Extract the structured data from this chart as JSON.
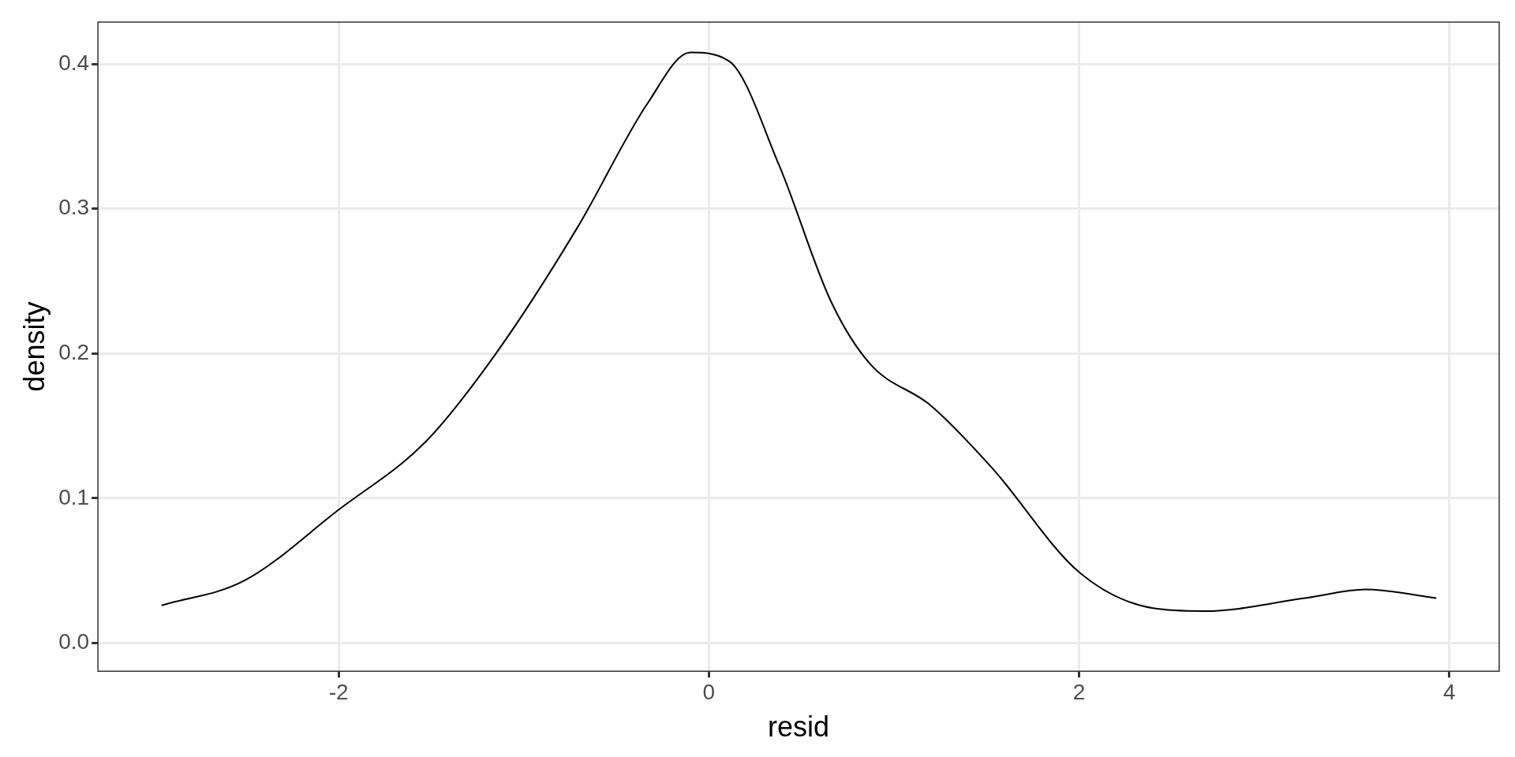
{
  "chart_data": {
    "type": "line",
    "xlabel": "resid",
    "ylabel": "density",
    "xlim": [
      -3.3,
      4.27
    ],
    "ylim": [
      -0.0195,
      0.429
    ],
    "xticks": [
      -2,
      0,
      2,
      4
    ],
    "yticks": [
      {
        "value": 0,
        "label": "0.0"
      },
      0.1,
      0.2,
      0.3,
      0.4
    ],
    "grid": true,
    "legend": false,
    "marker": "none",
    "line_style": "solid",
    "series": [
      {
        "color": "#000000",
        "x": [
          -2.956,
          -2.51,
          -2.0,
          -1.53,
          -1.15,
          -0.71,
          -0.33,
          -0.1,
          0.11,
          0.38,
          0.66,
          0.87,
          1.2,
          1.53,
          2.0,
          2.4,
          2.68,
          3.22,
          3.55,
          3.93
        ],
        "values": [
          0.026,
          0.043,
          0.092,
          0.139,
          0.2,
          0.287,
          0.373,
          0.408,
          0.402,
          0.33,
          0.236,
          0.193,
          0.164,
          0.121,
          0.049,
          0.024,
          0.022,
          0.031,
          0.037,
          0.031
        ]
      }
    ]
  }
}
